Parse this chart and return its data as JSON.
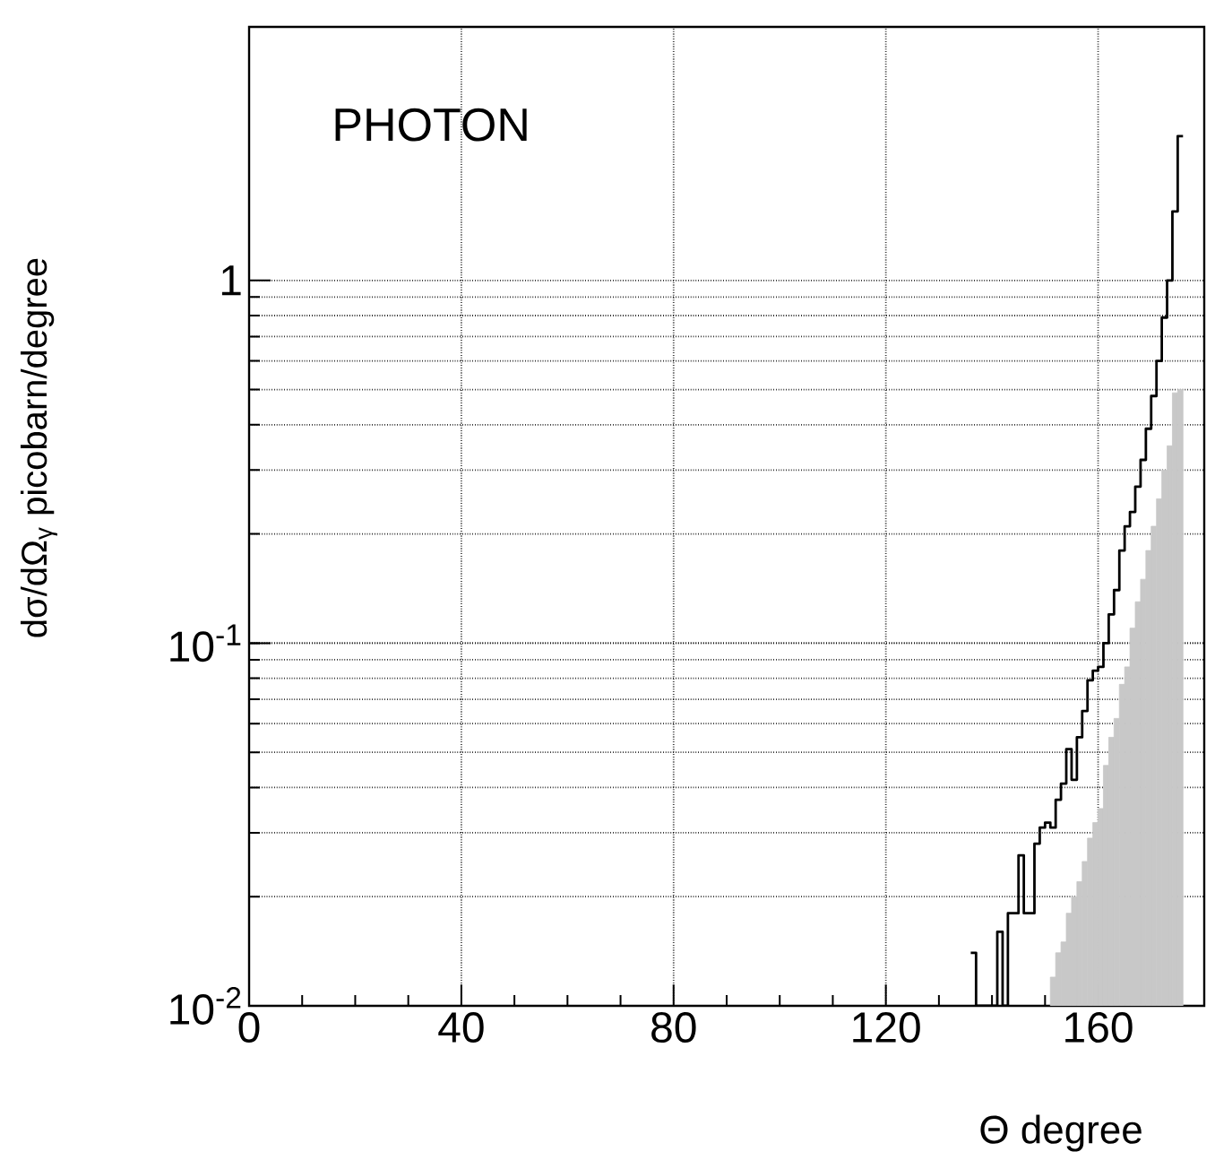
{
  "chart_data": {
    "type": "histogram",
    "xlabel": "Θ degree",
    "ylabel": "dσ/dΩ$_{γ}$  picobarn/degree",
    "annotations": [
      "PHOTON"
    ],
    "bins": [
      136,
      137,
      138,
      139,
      140,
      141,
      142,
      143,
      144,
      145,
      146,
      147,
      148,
      149,
      150,
      151,
      152,
      153,
      154,
      155,
      156,
      157,
      158,
      159,
      160,
      161,
      162,
      163,
      164,
      165,
      166,
      167,
      168,
      169,
      170,
      171,
      172,
      173,
      174,
      175,
      176
    ],
    "series": [
      {
        "type": "step",
        "color": "#000000",
        "x": [
          136,
          137,
          138,
          139,
          140,
          141,
          142,
          143,
          144,
          145,
          146,
          147,
          148,
          149,
          150,
          151,
          152,
          153,
          154,
          155,
          156,
          157,
          158,
          159,
          160,
          161,
          162,
          163,
          164,
          165,
          166,
          167,
          168,
          169,
          170,
          171,
          172,
          173,
          174,
          175
        ],
        "values": [
          0.014,
          0.01,
          0.01,
          0.01,
          0.01,
          0.016,
          0.01,
          0.018,
          0.018,
          0.026,
          0.018,
          0.018,
          0.028,
          0.031,
          0.032,
          0.031,
          0.037,
          0.041,
          0.051,
          0.042,
          0.055,
          0.065,
          0.079,
          0.084,
          0.086,
          0.1,
          0.12,
          0.14,
          0.18,
          0.21,
          0.23,
          0.27,
          0.32,
          0.39,
          0.48,
          0.6,
          0.79,
          1.0,
          1.55,
          2.5
        ]
      },
      {
        "color": "#c8c8c8",
        "values": [
          null,
          null,
          null,
          null,
          null,
          null,
          null,
          null,
          null,
          null,
          null,
          null,
          null,
          null,
          null,
          0.012,
          0.014,
          0.015,
          0.018,
          0.02,
          0.022,
          0.025,
          0.029,
          0.032,
          0.035,
          0.046,
          0.055,
          0.062,
          0.077,
          0.086,
          0.11,
          0.13,
          0.15,
          0.18,
          0.21,
          0.25,
          0.3,
          0.35,
          0.49,
          0.5
        ]
      }
    ],
    "xlim": [
      0,
      180
    ],
    "ylim": [
      0.01,
      5
    ],
    "xticks": [
      0,
      40,
      80,
      120,
      160
    ],
    "yticks": [
      {
        "value": 0.01,
        "label": "10$^{-2}$"
      },
      {
        "value": 0.1,
        "label": "10$^{-1}$"
      },
      {
        "value": 1,
        "label": "1"
      }
    ],
    "log": "y",
    "grid": true
  }
}
